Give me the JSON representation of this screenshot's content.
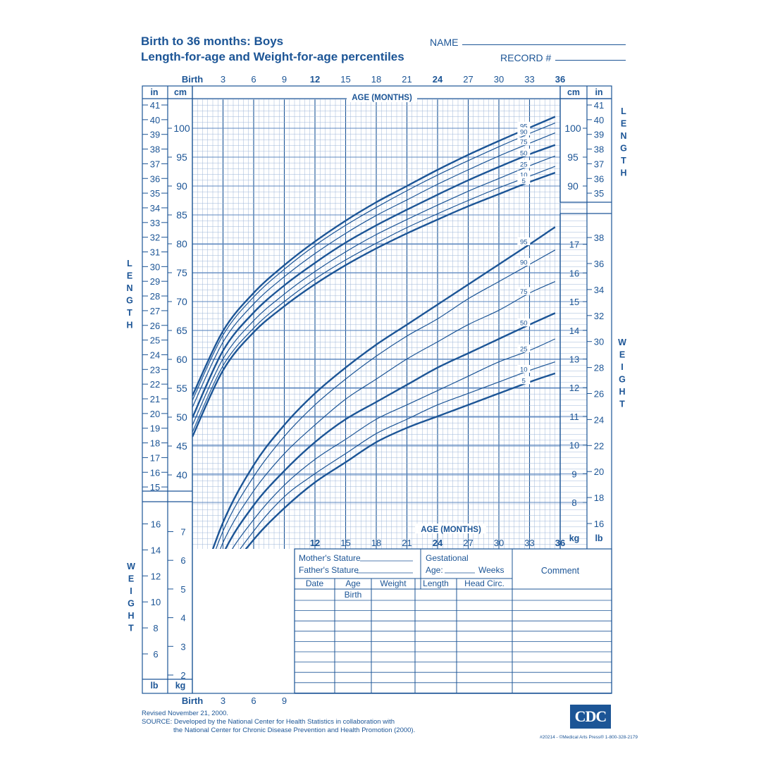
{
  "header": {
    "title_line1": "Birth to 36 months: Boys",
    "title_line2": "Length-for-age and Weight-for-age percentiles",
    "name_label": "NAME",
    "record_label": "RECORD #"
  },
  "chart_data": {
    "type": "line",
    "x_label": "AGE (MONTHS)",
    "x_ticks_top": [
      "Birth",
      "3",
      "6",
      "9",
      "12",
      "15",
      "18",
      "21",
      "24",
      "27",
      "30",
      "33",
      "36"
    ],
    "x_ticks_bottom_right": [
      "12",
      "15",
      "18",
      "21",
      "24",
      "27",
      "30",
      "33",
      "36"
    ],
    "x_ticks_bottom_left": [
      "Birth",
      "3",
      "6",
      "9"
    ],
    "ages": [
      0,
      3,
      6,
      9,
      12,
      15,
      18,
      21,
      24,
      27,
      30,
      33,
      35.5
    ],
    "length_axis": {
      "cm_label": "cm",
      "in_label": "in",
      "side_label": "LENGTH",
      "cm_ticks": [
        40,
        45,
        50,
        55,
        60,
        65,
        70,
        75,
        80,
        85,
        90,
        95,
        100
      ],
      "in_ticks": [
        15,
        16,
        17,
        18,
        19,
        20,
        21,
        22,
        23,
        24,
        25,
        26,
        27,
        28,
        29,
        30,
        31,
        32,
        33,
        34,
        35,
        36,
        37,
        38,
        39,
        40,
        41
      ],
      "right_cm_ticks": [
        90,
        95,
        100
      ],
      "right_in_ticks": [
        35,
        36,
        37,
        38,
        39,
        40,
        41
      ]
    },
    "weight_axis": {
      "kg_label": "kg",
      "lb_label": "lb",
      "side_label": "WEIGHT",
      "left_kg_ticks": [
        2,
        3,
        4,
        5,
        6,
        7
      ],
      "left_lb_ticks": [
        6,
        8,
        10,
        12,
        14,
        16
      ],
      "right_kg_ticks": [
        8,
        9,
        10,
        11,
        12,
        13,
        14,
        15,
        16,
        17
      ],
      "right_lb_ticks": [
        16,
        18,
        20,
        22,
        24,
        26,
        28,
        30,
        32,
        34,
        36,
        38
      ]
    },
    "length_percentiles": [
      {
        "name": "95",
        "values": [
          53.7,
          64.9,
          71.5,
          76.3,
          80.4,
          84.0,
          87.2,
          90.0,
          92.8,
          95.4,
          97.8,
          100.1,
          102.0
        ]
      },
      {
        "name": "90",
        "values": [
          52.9,
          64.2,
          70.8,
          75.6,
          79.7,
          83.2,
          86.3,
          89.2,
          91.9,
          94.4,
          96.8,
          99.1,
          100.9
        ]
      },
      {
        "name": "75",
        "values": [
          51.7,
          63.0,
          69.6,
          74.3,
          78.3,
          81.8,
          84.9,
          87.6,
          90.3,
          92.8,
          95.2,
          97.4,
          99.2
        ]
      },
      {
        "name": "50",
        "values": [
          49.9,
          61.5,
          68.1,
          72.8,
          76.7,
          80.2,
          83.2,
          85.9,
          88.5,
          91.0,
          93.3,
          95.5,
          97.1
        ]
      },
      {
        "name": "25",
        "values": [
          48.6,
          60.1,
          66.7,
          71.3,
          75.2,
          78.6,
          81.6,
          84.2,
          86.7,
          89.1,
          91.3,
          93.5,
          95.2
        ]
      },
      {
        "name": "10",
        "values": [
          47.4,
          58.9,
          65.4,
          70.0,
          73.9,
          77.2,
          80.1,
          82.8,
          85.2,
          87.5,
          89.7,
          91.7,
          93.4
        ]
      },
      {
        "name": "5",
        "values": [
          46.6,
          58.1,
          64.7,
          69.2,
          73.0,
          76.3,
          79.2,
          81.8,
          84.2,
          86.5,
          88.6,
          90.7,
          92.3
        ]
      }
    ],
    "weight_percentiles": [
      {
        "name": "95",
        "values": [
          4.3,
          7.3,
          9.3,
          10.7,
          11.8,
          12.7,
          13.5,
          14.2,
          14.9,
          15.6,
          16.3,
          17.0,
          17.6
        ]
      },
      {
        "name": "90",
        "values": [
          4.0,
          7.0,
          8.9,
          10.3,
          11.4,
          12.3,
          13.1,
          13.8,
          14.4,
          15.1,
          15.7,
          16.3,
          16.8
        ]
      },
      {
        "name": "75",
        "values": [
          3.7,
          6.6,
          8.4,
          9.7,
          10.7,
          11.6,
          12.3,
          13.0,
          13.6,
          14.2,
          14.7,
          15.3,
          15.7
        ]
      },
      {
        "name": "50",
        "values": [
          3.4,
          6.2,
          7.9,
          9.1,
          10.1,
          10.9,
          11.5,
          12.1,
          12.7,
          13.2,
          13.7,
          14.2,
          14.6
        ]
      },
      {
        "name": "25",
        "values": [
          3.1,
          5.8,
          7.4,
          8.6,
          9.5,
          10.2,
          10.9,
          11.4,
          11.9,
          12.4,
          12.9,
          13.3,
          13.7
        ]
      },
      {
        "name": "10",
        "values": [
          2.8,
          5.4,
          7.0,
          8.2,
          9.0,
          9.7,
          10.4,
          10.9,
          11.4,
          11.8,
          12.2,
          12.6,
          12.9
        ]
      },
      {
        "name": "5",
        "values": [
          2.5,
          5.2,
          6.7,
          7.8,
          8.7,
          9.4,
          10.1,
          10.6,
          11.0,
          11.4,
          11.8,
          12.2,
          12.5
        ]
      }
    ]
  },
  "record_table": {
    "mothers_stature": "Mother's Stature",
    "fathers_stature": "Father's Stature",
    "gestational": "Gestational",
    "age_label": "Age:",
    "weeks_label": "Weeks",
    "comment": "Comment",
    "columns": [
      "Date",
      "Age",
      "Weight",
      "Length",
      "Head  Circ."
    ],
    "first_row_age": "Birth"
  },
  "footer": {
    "revised": "Revised November 21, 2000.",
    "source_line1": "SOURCE: Developed by the National Center for Health Statistics in collaboration with",
    "source_line2": "the National Center for Chronic Disease Prevention and Health Promotion (2000).",
    "logo_text": "CDC",
    "publisher": "#20214 - ©Medical Arts Press®   1-800-328-2179"
  }
}
